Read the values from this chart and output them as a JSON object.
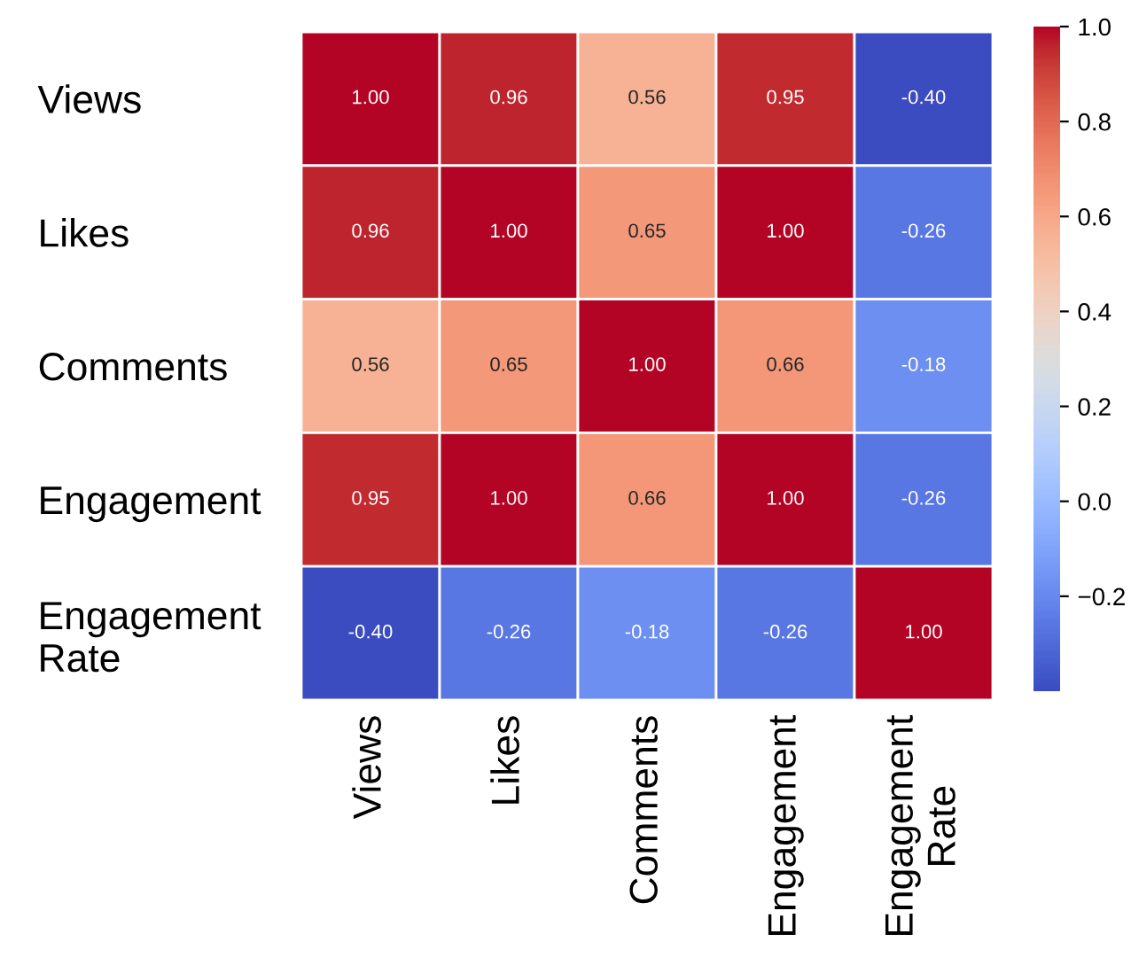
{
  "chart_data": {
    "type": "heatmap",
    "categories": [
      "Views",
      "Likes",
      "Comments",
      "Engagement",
      "Engagement Rate"
    ],
    "y_categories": [
      "Views",
      "Likes",
      "Comments",
      "Engagement",
      "Engagement Rate"
    ],
    "cells": [
      [
        1.0,
        0.96,
        0.56,
        0.95,
        -0.4
      ],
      [
        0.96,
        1.0,
        0.65,
        1.0,
        -0.26
      ],
      [
        0.56,
        0.65,
        1.0,
        0.66,
        -0.18
      ],
      [
        0.95,
        1.0,
        0.66,
        1.0,
        -0.26
      ],
      [
        -0.4,
        -0.26,
        -0.18,
        -0.26,
        1.0
      ]
    ],
    "cell_labels": [
      [
        "1.00",
        "0.96",
        "0.56",
        "0.95",
        "-0.40"
      ],
      [
        "0.96",
        "1.00",
        "0.65",
        "1.00",
        "-0.26"
      ],
      [
        "0.56",
        "0.65",
        "1.00",
        "0.66",
        "-0.18"
      ],
      [
        "0.95",
        "1.00",
        "0.66",
        "1.00",
        "-0.26"
      ],
      [
        "-0.40",
        "-0.26",
        "-0.18",
        "-0.26",
        "1.00"
      ]
    ],
    "clim": [
      -0.4,
      1.0
    ],
    "cticks": [
      {
        "value": -0.2,
        "label": "−0.2"
      },
      {
        "value": 0.0,
        "label": "0.0"
      },
      {
        "value": 0.2,
        "label": "0.2"
      },
      {
        "value": 0.4,
        "label": "0.4"
      },
      {
        "value": 0.6,
        "label": "0.6"
      },
      {
        "value": 0.8,
        "label": "0.8"
      },
      {
        "value": 1.0,
        "label": "1.0"
      }
    ]
  }
}
